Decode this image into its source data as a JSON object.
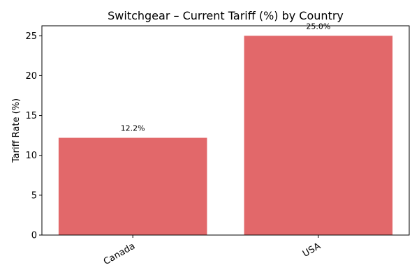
{
  "chart_data": {
    "type": "bar",
    "title": "Switchgear – Current Tariff (%) by Country",
    "xlabel": "",
    "ylabel": "Tariff Rate (%)",
    "categories": [
      "Canada",
      "USA"
    ],
    "values": [
      12.2,
      25.0
    ],
    "data_labels": [
      "12.2%",
      "25.0%"
    ],
    "ylim": [
      0,
      26.25
    ],
    "yticks": [
      0,
      5,
      10,
      15,
      20,
      25
    ],
    "ytick_labels": [
      "0",
      "5",
      "10",
      "15",
      "20",
      "25"
    ],
    "grid": false,
    "bar_color": "#e2686a"
  }
}
